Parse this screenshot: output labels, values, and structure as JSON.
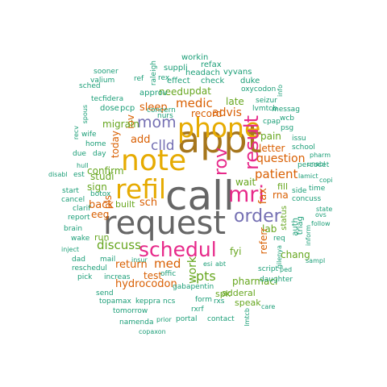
{
  "colors": {
    "gray": "#666666",
    "olive": "#A6761D",
    "gold": "#E6AB02",
    "green": "#66A61E",
    "pink": "#E7298A",
    "purple": "#7570B3",
    "orange": "#D95F02",
    "teal": "#1B9E77"
  },
  "words": [
    {
      "text": "call",
      "color": "gray",
      "vertical": false
    },
    {
      "text": "request",
      "color": "gray",
      "vertical": false
    },
    {
      "text": "appt",
      "color": "olive",
      "vertical": false
    },
    {
      "text": "note",
      "color": "gold",
      "vertical": false
    },
    {
      "text": "phone",
      "color": "gold",
      "vertical": false
    },
    {
      "text": "refil",
      "color": "gold",
      "vertical": false
    },
    {
      "text": "mri",
      "color": "pink",
      "vertical": false
    },
    {
      "text": "schedul",
      "color": "pink",
      "vertical": false
    },
    {
      "text": "result",
      "color": "pink",
      "vertical": true
    },
    {
      "text": "rov",
      "color": "pink",
      "vertical": true
    },
    {
      "text": "order",
      "color": "purple",
      "vertical": false
    },
    {
      "text": "mom",
      "color": "purple",
      "vertical": false
    },
    {
      "text": "clld",
      "color": "purple",
      "vertical": false
    },
    {
      "text": "patient",
      "color": "orange",
      "vertical": false
    },
    {
      "text": "med",
      "color": "orange",
      "vertical": false
    },
    {
      "text": "discuss",
      "color": "green",
      "vertical": false
    },
    {
      "text": "medic",
      "color": "orange",
      "vertical": false
    },
    {
      "text": "advis",
      "color": "orange",
      "vertical": false
    },
    {
      "text": "question",
      "color": "orange",
      "vertical": false
    },
    {
      "text": "sleep",
      "color": "orange",
      "vertical": false
    },
    {
      "text": "add",
      "color": "orange",
      "vertical": false
    },
    {
      "text": "back",
      "color": "orange",
      "vertical": false
    },
    {
      "text": "sch",
      "color": "orange",
      "vertical": false
    },
    {
      "text": "fax",
      "color": "orange",
      "vertical": true
    },
    {
      "text": "pts",
      "color": "green",
      "vertical": false
    },
    {
      "text": "work",
      "color": "green",
      "vertical": true
    },
    {
      "text": "return",
      "color": "orange",
      "vertical": false
    },
    {
      "text": "hydrocodon",
      "color": "orange",
      "vertical": false
    },
    {
      "text": "test",
      "color": "orange",
      "vertical": false
    },
    {
      "text": "iov",
      "color": "orange",
      "vertical": true
    },
    {
      "text": "today",
      "color": "orange",
      "vertical": true
    },
    {
      "text": "pls",
      "color": "orange",
      "vertical": true
    },
    {
      "text": "eeg",
      "color": "orange",
      "vertical": false
    },
    {
      "text": "record",
      "color": "orange",
      "vertical": false
    },
    {
      "text": "need",
      "color": "green",
      "vertical": false
    },
    {
      "text": "updat",
      "color": "green",
      "vertical": false
    },
    {
      "text": "late",
      "color": "green",
      "vertical": false
    },
    {
      "text": "pain",
      "color": "green",
      "vertical": false
    },
    {
      "text": "letter",
      "color": "orange",
      "vertical": false
    },
    {
      "text": "lab",
      "color": "green",
      "vertical": false
    },
    {
      "text": "wait",
      "color": "green",
      "vertical": false
    },
    {
      "text": "rna",
      "color": "orange",
      "vertical": false
    },
    {
      "text": "fill",
      "color": "green",
      "vertical": false
    },
    {
      "text": "chang",
      "color": "green",
      "vertical": false
    },
    {
      "text": "pharmaci",
      "color": "green",
      "vertical": false
    },
    {
      "text": "spk",
      "color": "green",
      "vertical": false
    },
    {
      "text": "adderal",
      "color": "green",
      "vertical": false
    },
    {
      "text": "speak",
      "color": "green",
      "vertical": false
    },
    {
      "text": "fyi",
      "color": "green",
      "vertical": false
    },
    {
      "text": "referr",
      "color": "orange",
      "vertical": true
    },
    {
      "text": "studi",
      "color": "green",
      "vertical": false
    },
    {
      "text": "sign",
      "color": "green",
      "vertical": false
    },
    {
      "text": "confirm",
      "color": "green",
      "vertical": false
    },
    {
      "text": "run",
      "color": "green",
      "vertical": false
    },
    {
      "text": "built",
      "color": "green",
      "vertical": false
    },
    {
      "text": "migrain",
      "color": "green",
      "vertical": false
    },
    {
      "text": "dose",
      "color": "teal",
      "vertical": false
    },
    {
      "text": "pcp",
      "color": "teal",
      "vertical": false
    },
    {
      "text": "approv",
      "color": "teal",
      "vertical": false
    },
    {
      "text": "effect",
      "color": "teal",
      "vertical": false
    },
    {
      "text": "check",
      "color": "teal",
      "vertical": false
    },
    {
      "text": "duke",
      "color": "teal",
      "vertical": false
    },
    {
      "text": "workin",
      "color": "teal",
      "vertical": false
    },
    {
      "text": "refax",
      "color": "teal",
      "vertical": false
    },
    {
      "text": "headach",
      "color": "teal",
      "vertical": false
    },
    {
      "text": "vyvans",
      "color": "teal",
      "vertical": false
    },
    {
      "text": "suppli",
      "color": "teal",
      "vertical": false
    },
    {
      "text": "raleigh",
      "color": "teal",
      "vertical": true
    },
    {
      "text": "sooner",
      "color": "teal",
      "vertical": false
    },
    {
      "text": "valium",
      "color": "teal",
      "vertical": false
    },
    {
      "text": "sched",
      "color": "teal",
      "vertical": false
    },
    {
      "text": "ref",
      "color": "teal",
      "vertical": false
    },
    {
      "text": "rex",
      "color": "teal",
      "vertical": false
    },
    {
      "text": "oxycodon",
      "color": "teal",
      "vertical": false
    },
    {
      "text": "tecfidera",
      "color": "teal",
      "vertical": false
    },
    {
      "text": "concern",
      "color": "teal",
      "vertical": false
    },
    {
      "text": "nurs",
      "color": "teal",
      "vertical": false
    },
    {
      "text": "lvmtcb",
      "color": "teal",
      "vertical": false
    },
    {
      "text": "seizur",
      "color": "teal",
      "vertical": false
    },
    {
      "text": "messag",
      "color": "teal",
      "vertical": false
    },
    {
      "text": "info",
      "color": "teal",
      "vertical": true
    },
    {
      "text": "wcb",
      "color": "teal",
      "vertical": false
    },
    {
      "text": "psg",
      "color": "teal",
      "vertical": false
    },
    {
      "text": "cpap",
      "color": "teal",
      "vertical": false
    },
    {
      "text": "recv",
      "color": "teal",
      "vertical": true
    },
    {
      "text": "spous",
      "color": "teal",
      "vertical": true
    },
    {
      "text": "wife",
      "color": "teal",
      "vertical": false
    },
    {
      "text": "home",
      "color": "teal",
      "vertical": false
    },
    {
      "text": "day",
      "color": "teal",
      "vertical": false
    },
    {
      "text": "due",
      "color": "teal",
      "vertical": false
    },
    {
      "text": "hull",
      "color": "teal",
      "vertical": false
    },
    {
      "text": "est",
      "color": "teal",
      "vertical": false
    },
    {
      "text": "disabl",
      "color": "teal",
      "vertical": false
    },
    {
      "text": "start",
      "color": "teal",
      "vertical": false
    },
    {
      "text": "cancel",
      "color": "teal",
      "vertical": false
    },
    {
      "text": "botox",
      "color": "teal",
      "vertical": false
    },
    {
      "text": "clarif",
      "color": "teal",
      "vertical": false
    },
    {
      "text": "report",
      "color": "teal",
      "vertical": false
    },
    {
      "text": "brain",
      "color": "teal",
      "vertical": false
    },
    {
      "text": "wake",
      "color": "teal",
      "vertical": false
    },
    {
      "text": "dad",
      "color": "teal",
      "vertical": false
    },
    {
      "text": "mail",
      "color": "teal",
      "vertical": false
    },
    {
      "text": "insur",
      "color": "teal",
      "vertical": false
    },
    {
      "text": "reschedul",
      "color": "teal",
      "vertical": false
    },
    {
      "text": "offic",
      "color": "teal",
      "vertical": false
    },
    {
      "text": "pick",
      "color": "teal",
      "vertical": false
    },
    {
      "text": "increas",
      "color": "teal",
      "vertical": false
    },
    {
      "text": "send",
      "color": "teal",
      "vertical": false
    },
    {
      "text": "topamax",
      "color": "teal",
      "vertical": false
    },
    {
      "text": "keppra",
      "color": "teal",
      "vertical": false
    },
    {
      "text": "ncs",
      "color": "teal",
      "vertical": false
    },
    {
      "text": "tomorrow",
      "color": "teal",
      "vertical": false
    },
    {
      "text": "namenda",
      "color": "teal",
      "vertical": false
    },
    {
      "text": "prior",
      "color": "teal",
      "vertical": false
    },
    {
      "text": "portal",
      "color": "teal",
      "vertical": false
    },
    {
      "text": "copaxon",
      "color": "teal",
      "vertical": false
    },
    {
      "text": "gabapentin",
      "color": "teal",
      "vertical": false
    },
    {
      "text": "form",
      "color": "teal",
      "vertical": false
    },
    {
      "text": "rxs",
      "color": "teal",
      "vertical": false
    },
    {
      "text": "rxrf",
      "color": "teal",
      "vertical": false
    },
    {
      "text": "contact",
      "color": "teal",
      "vertical": false
    },
    {
      "text": "lmtcb",
      "color": "teal",
      "vertical": true
    },
    {
      "text": "care",
      "color": "teal",
      "vertical": false
    },
    {
      "text": "esi",
      "color": "teal",
      "vertical": false
    },
    {
      "text": "abt",
      "color": "teal",
      "vertical": false
    },
    {
      "text": "script",
      "color": "teal",
      "vertical": false
    },
    {
      "text": "ped",
      "color": "teal",
      "vertical": false
    },
    {
      "text": "daughter",
      "color": "teal",
      "vertical": false
    },
    {
      "text": "gilenya",
      "color": "teal",
      "vertical": true
    },
    {
      "text": "sampl",
      "color": "teal",
      "vertical": false
    },
    {
      "text": "inform",
      "color": "teal",
      "vertical": true
    },
    {
      "text": "follow",
      "color": "teal",
      "vertical": false
    },
    {
      "text": "ovs",
      "color": "teal",
      "vertical": false
    },
    {
      "text": "state",
      "color": "teal",
      "vertical": false
    },
    {
      "text": "concuss",
      "color": "teal",
      "vertical": false
    },
    {
      "text": "time",
      "color": "teal",
      "vertical": false
    },
    {
      "text": "side",
      "color": "teal",
      "vertical": false
    },
    {
      "text": "lamict",
      "color": "teal",
      "vertical": false
    },
    {
      "text": "copi",
      "color": "teal",
      "vertical": false
    },
    {
      "text": "percocet",
      "color": "teal",
      "vertical": false
    },
    {
      "text": "unabl",
      "color": "teal",
      "vertical": false
    },
    {
      "text": "pharm",
      "color": "teal",
      "vertical": false
    },
    {
      "text": "school",
      "color": "teal",
      "vertical": false
    },
    {
      "text": "issu",
      "color": "teal",
      "vertical": false
    },
    {
      "text": "status",
      "color": "green",
      "vertical": true
    },
    {
      "text": "auth",
      "color": "teal",
      "vertical": true
    },
    {
      "text": "triag",
      "color": "teal",
      "vertical": true
    },
    {
      "text": "req",
      "color": "teal",
      "vertical": false
    },
    {
      "text": "inject",
      "color": "teal",
      "vertical": false
    }
  ]
}
